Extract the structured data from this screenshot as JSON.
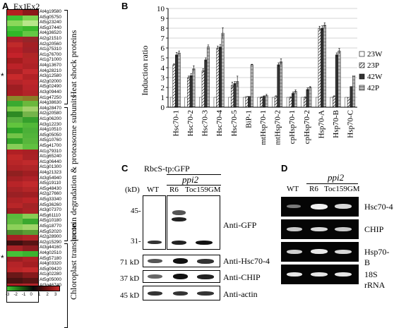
{
  "panel_a": {
    "letter": "A",
    "col_labels": [
      "Ex1",
      "Ex2"
    ],
    "genes": [
      "At4g19580",
      "At5g05750",
      "At5g23240",
      "At5g37440",
      "At4g36520",
      "At2g21510",
      "At2g20560",
      "At1g75310",
      "At1g76700",
      "At1g71000",
      "At4g13670",
      "At4g28210",
      "At3g12580",
      "At2g02000",
      "At5g02490",
      "At3g09440",
      "At1g47250",
      "At4g38630",
      "At4g28470",
      "At2g20580",
      "At1g06200",
      "At3g12230",
      "At4g10510",
      "At5g05050",
      "At5g10760",
      "At5g41700",
      "At1g79310",
      "At1g65240",
      "At1g06440",
      "At1g01300",
      "At4g21323",
      "At3g54940",
      "At5g19110",
      "At5g48430",
      "At2g27660",
      "At5g33340",
      "At5g36260",
      "At3g07370",
      "At5g61110",
      "At5g10180",
      "At5g18770",
      "At5g52020",
      "At2g28900",
      "At2g15290",
      "At3g44160",
      "At4g02510",
      "At5g57180",
      "At4g03320",
      "At5g09420",
      "At1g02280",
      "At5g05000",
      "At3g46740"
    ],
    "cell_colors": [
      [
        "#b42020",
        "#8c1a1a"
      ],
      [
        "#3ec232",
        "#7cd450"
      ],
      [
        "#8ad85a",
        "#b8e68a"
      ],
      [
        "#46c238",
        "#3ab82c"
      ],
      [
        "#30b828",
        "#64c844"
      ],
      [
        "#a8202a",
        "#96262a"
      ],
      [
        "#c02a2a",
        "#a42024"
      ],
      [
        "#b81e26",
        "#a02028"
      ],
      [
        "#c4222a",
        "#b02626"
      ],
      [
        "#a41c1e",
        "#b42428"
      ],
      [
        "#bc2228",
        "#ae2226"
      ],
      [
        "#a62024",
        "#c42a2e"
      ],
      [
        "#c82a2c",
        "#b22226"
      ],
      [
        "#b4242a",
        "#be262a"
      ],
      [
        "#9e1e22",
        "#b8242a"
      ],
      [
        "#a81c22",
        "#b22428"
      ],
      [
        "#8a8a2a",
        "#8c7a28"
      ],
      [
        "#3aaa30",
        "#6ab83c"
      ],
      [
        "#7cc848",
        "#a2d06a"
      ],
      [
        "#2e8a24",
        "#74b44a"
      ],
      [
        "#58b040",
        "#36a02c"
      ],
      [
        "#62c43e",
        "#52b838"
      ],
      [
        "#2ea428",
        "#4cb038"
      ],
      [
        "#72c448",
        "#52b43a"
      ],
      [
        "#34a42a",
        "#58b63c"
      ],
      [
        "#86ce58",
        "#60c040"
      ],
      [
        "#b02024",
        "#a82024"
      ],
      [
        "#c02828",
        "#aa2226"
      ],
      [
        "#b82628",
        "#c02a2c"
      ],
      [
        "#ae2226",
        "#b02628"
      ],
      [
        "#902020",
        "#a01e22"
      ],
      [
        "#a42024",
        "#b02228"
      ],
      [
        "#b82428",
        "#c22a2c"
      ],
      [
        "#a82226",
        "#b42628"
      ],
      [
        "#9a2024",
        "#a01e22"
      ],
      [
        "#ae2226",
        "#ba2428"
      ],
      [
        "#b82628",
        "#a42426"
      ],
      [
        "#9c1e22",
        "#aa2226"
      ],
      [
        "#5aba3c",
        "#88cc54"
      ],
      [
        "#62bc40",
        "#3aa82e"
      ],
      [
        "#8cd05a",
        "#a0d46a"
      ],
      [
        "#4c8a2c",
        "#5a9c34"
      ],
      [
        "#a62024",
        "#b22428"
      ],
      [
        "#3e1010",
        "#5a1414"
      ],
      [
        "#a82226",
        "#8e1c20"
      ],
      [
        "#46c038",
        "#3cb430"
      ],
      [
        "#9a1e22",
        "#ae2226"
      ],
      [
        "#b42428",
        "#a41e22"
      ],
      [
        "#bc2628",
        "#c42a2c"
      ],
      [
        "#6a1818",
        "#861a1c"
      ],
      [
        "#4a1212",
        "#5a1414"
      ],
      [
        "#ac2226",
        "#b02428"
      ]
    ],
    "asterisks": [
      "*",
      "*"
    ],
    "brackets": [
      "Heat shock proteins",
      "protein degradation & proteasome subunits",
      "Chloroplast translocon"
    ],
    "scale_ticks": [
      "-3",
      "-2",
      "-1",
      "0",
      "1",
      "2",
      "3"
    ]
  },
  "panel_b": {
    "letter": "B",
    "chart_data": {
      "type": "bar",
      "ylabel": "Induction ratio",
      "ylim": [
        0,
        10
      ],
      "yticks": [
        0,
        1,
        2,
        3,
        4,
        5,
        6,
        7,
        8,
        9,
        10
      ],
      "categories": [
        "Hsc70-1",
        "Hsc70-2",
        "Hsc70-3",
        "Hsc70-4",
        "Hsc70-5",
        "BiP-1",
        "mtHsp70-1",
        "mtHsp70-2",
        "cpHsp70-1",
        "cpHsp70-2",
        "Hsp70-A",
        "Hsp70-B",
        "Hsp70-C"
      ],
      "series": [
        {
          "name": "23W",
          "values": [
            1,
            1,
            1,
            1,
            1,
            1,
            1,
            1,
            1,
            1,
            1,
            1,
            1
          ],
          "errors": [
            0,
            0,
            0,
            0,
            0,
            0,
            0,
            0,
            0,
            0,
            0,
            0,
            0
          ]
        },
        {
          "name": "23P",
          "values": [
            4.3,
            3.0,
            3.7,
            6.0,
            2.2,
            1.1,
            1.0,
            1.1,
            1.0,
            1.0,
            8.0,
            1.1,
            1.0
          ],
          "errors": [
            0.1,
            0.15,
            0.2,
            0.2,
            0.35,
            0,
            0.05,
            0.05,
            0.05,
            0.05,
            0.2,
            0.05,
            0
          ]
        },
        {
          "name": "42W",
          "values": [
            5.3,
            3.2,
            4.8,
            6.1,
            2.4,
            1.1,
            1.1,
            4.3,
            1.4,
            1.8,
            8.0,
            5.3,
            2.1
          ],
          "errors": [
            0.25,
            0.2,
            0.2,
            0.25,
            0.2,
            0,
            0.05,
            0.2,
            0.15,
            0.15,
            0.25,
            0.2,
            0
          ]
        },
        {
          "name": "42P",
          "values": [
            5.5,
            3.9,
            6.1,
            7.5,
            2.6,
            4.3,
            1.2,
            4.6,
            1.6,
            2.0,
            8.3,
            5.7,
            3.2
          ],
          "errors": [
            0.2,
            0.3,
            0.2,
            0.55,
            0.55,
            0.05,
            0.1,
            0.3,
            0.15,
            0.1,
            0.25,
            0.25,
            0
          ]
        }
      ],
      "legend_position": "right"
    }
  },
  "panel_c": {
    "letter": "C",
    "header": "RbcS-tp:GFP",
    "mutant": "ppi2",
    "lanes": [
      "WT",
      "R6",
      "Toc159GM"
    ],
    "kd_unit": "(kD)",
    "gfp_markers": [
      "45-",
      "31-"
    ],
    "rows": [
      {
        "kd": "71 kD",
        "label": "Anti-Hsc70-4"
      },
      {
        "kd": "37 kD",
        "label": "Anti-CHIP"
      },
      {
        "kd": "45 kD",
        "label": "Anti-actin"
      }
    ],
    "gfp_label": "Anti-GFP"
  },
  "panel_d": {
    "letter": "D",
    "mutant": "ppi2",
    "lanes": [
      "WT",
      "R6",
      "Toc159GM"
    ],
    "rows": [
      "Hsc70-4",
      "CHIP",
      "Hsp70-B",
      "18S rRNA"
    ]
  }
}
